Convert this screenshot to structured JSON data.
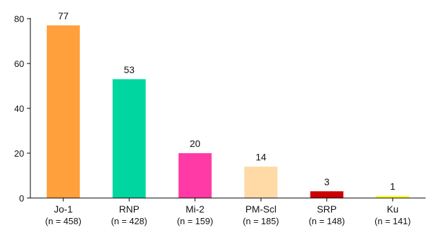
{
  "chart_data": {
    "type": "bar",
    "title": "",
    "xlabel": "",
    "ylabel": "",
    "ylim": [
      0,
      80
    ],
    "yticks": [
      0,
      20,
      40,
      60,
      80
    ],
    "grid": false,
    "categories": [
      "Jo-1",
      "RNP",
      "Mi-2",
      "PM-Scl",
      "SRP",
      "Ku"
    ],
    "sample_sizes": [
      "(n = 458)",
      "(n = 428)",
      "(n = 159)",
      "(n = 185)",
      "(n = 148)",
      "(n = 141)"
    ],
    "values": [
      77,
      53,
      20,
      14,
      3,
      1
    ],
    "value_labels": [
      "77",
      "53",
      "20",
      "14",
      "3",
      "1"
    ],
    "colors": [
      "#FFA03C",
      "#00D6A0",
      "#FF3AA6",
      "#FFD9A6",
      "#CC0000",
      "#FFFF33"
    ]
  }
}
